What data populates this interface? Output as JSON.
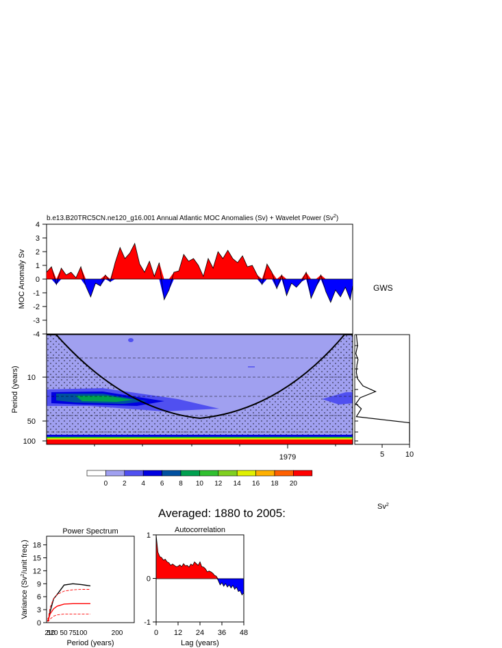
{
  "main_title": "b.e13.B20TRC5CN.ne120_g16.001 Annual Atlantic MOC Anomalies (Sv) + Wavelet Power (Sv",
  "main_title_sup": "2",
  "main_title_end": ")",
  "averaged_title": "Averaged: 1880 to 2005:",
  "gws_label": "GWS",
  "sv2_label": "Sv",
  "sv2_sup": "2",
  "colors": {
    "positive": "#ff0000",
    "negative": "#0000ff",
    "ramp": [
      "#ffffff",
      "#a0a0f0",
      "#5050f0",
      "#0000e0",
      "#0050a0",
      "#00a050",
      "#30c030",
      "#80d020",
      "#e0f000",
      "#ffb000",
      "#ff6000",
      "#ff0000"
    ]
  },
  "chart_data": [
    {
      "type": "area",
      "name": "moc-anomaly",
      "ylabel": "MOC Anomaly Sv",
      "ylim": [
        -4,
        4
      ],
      "yticks": [
        4,
        3,
        2,
        1,
        0,
        -1,
        -2,
        -3,
        -4
      ],
      "x": [
        1880,
        1882,
        1884,
        1886,
        1888,
        1890,
        1892,
        1894,
        1896,
        1898,
        1900,
        1902,
        1904,
        1906,
        1908,
        1910,
        1912,
        1914,
        1916,
        1918,
        1920,
        1922,
        1924,
        1926,
        1928,
        1930,
        1932,
        1934,
        1936,
        1938,
        1940,
        1942,
        1944,
        1946,
        1948,
        1950,
        1952,
        1954,
        1956,
        1958,
        1960,
        1962,
        1964,
        1966,
        1968,
        1970,
        1972,
        1974,
        1976,
        1978,
        1980,
        1982,
        1984,
        1986,
        1988,
        1990,
        1992,
        1994,
        1996,
        1998,
        2000,
        2002,
        2004,
        2005
      ],
      "y": [
        0.5,
        0.9,
        -0.4,
        0.8,
        0.3,
        0.5,
        0.1,
        0.9,
        -0.5,
        -1.3,
        -0.3,
        -0.5,
        0.3,
        -0.2,
        1.2,
        2.3,
        1.5,
        1.9,
        2.6,
        1.1,
        0.5,
        1.3,
        0.2,
        1.2,
        -1.5,
        -0.8,
        0.5,
        0.6,
        1.8,
        1.3,
        1.5,
        1.0,
        0.2,
        1.5,
        0.8,
        2.0,
        1.5,
        2.1,
        1.5,
        1.2,
        1.7,
        0.9,
        1.0,
        0.3,
        -0.4,
        1.1,
        0.5,
        -0.7,
        0.3,
        -1.2,
        -0.3,
        -0.6,
        -0.2,
        0.5,
        -1.4,
        -0.6,
        0.3,
        -0.9,
        -1.7,
        -0.8,
        -1.3,
        -0.6,
        -1.5,
        -0.5
      ],
      "xlim": [
        1880,
        2005
      ]
    },
    {
      "type": "heatmap",
      "name": "wavelet-power",
      "ylabel": "Period (years)",
      "ytick_labels": [
        "10",
        "50",
        "100"
      ],
      "xtick_labels": [
        "1979"
      ],
      "colorbar_levels": [
        0,
        2,
        4,
        6,
        8,
        10,
        12,
        14,
        16,
        18,
        20
      ],
      "colorbar_labels": [
        "0",
        "2",
        "4",
        "6",
        "8",
        "10",
        "12",
        "14",
        "16",
        "18",
        "20"
      ]
    },
    {
      "type": "line",
      "name": "global-wavelet-spectrum",
      "xtick_labels": [
        "5",
        "10"
      ],
      "xlim": [
        0,
        10
      ],
      "period": [
        2,
        3,
        4,
        5,
        6,
        8,
        10,
        13,
        16,
        20,
        25,
        30,
        40,
        50,
        70,
        100
      ],
      "power": [
        0.3,
        0.5,
        0.2,
        0.6,
        0.4,
        0.3,
        0.5,
        1.5,
        3.8,
        1.0,
        0.2,
        1.2,
        0.3,
        10.0,
        10.0,
        10.0
      ]
    },
    {
      "type": "line",
      "name": "power-spectrum",
      "title": "Power Spectrum",
      "xlabel": "Period (years)",
      "ylabel": "Variance (Sv",
      "ylabel_sup": "2",
      "ylabel_end": "/unit freq.)",
      "ylim": [
        0,
        20
      ],
      "yticks": [
        0,
        3,
        6,
        9,
        12,
        15,
        18
      ],
      "xlim": [
        0,
        250
      ],
      "xtick_labels": [
        "2",
        "5",
        "10",
        "20",
        "50",
        "75",
        "100",
        "200"
      ],
      "series": [
        {
          "x": [
            2,
            5,
            10,
            20,
            30,
            50,
            75,
            100,
            125
          ],
          "y": [
            0.5,
            0.5,
            2.5,
            5.5,
            6.5,
            8.7,
            9.0,
            8.8,
            8.5
          ]
        },
        {
          "x": [
            2,
            5,
            10,
            20,
            30,
            50,
            75,
            100,
            125
          ],
          "y": [
            0.5,
            0.6,
            2.0,
            3.2,
            3.8,
            4.3,
            4.4,
            4.4,
            4.4
          ]
        },
        {
          "x": [
            2,
            5,
            10,
            20,
            30,
            50,
            75,
            100,
            125
          ],
          "y": [
            0.8,
            1.0,
            3.5,
            5.5,
            6.5,
            7.3,
            7.6,
            7.7,
            7.7
          ]
        },
        {
          "x": [
            2,
            5,
            10,
            20,
            30,
            50,
            75,
            100,
            125
          ],
          "y": [
            0.3,
            0.3,
            0.8,
            1.5,
            1.8,
            2.0,
            2.0,
            2.0,
            2.0
          ]
        }
      ]
    },
    {
      "type": "area",
      "name": "autocorrelation",
      "title": "Autocorrelation",
      "xlabel": "Lag (years)",
      "xlim": [
        0,
        48
      ],
      "ylim": [
        -1,
        1
      ],
      "xticks": [
        0,
        12,
        24,
        36,
        48
      ],
      "yticks": [
        1,
        0,
        -1
      ],
      "x": [
        0,
        1,
        2,
        3,
        4,
        5,
        6,
        7,
        8,
        9,
        10,
        11,
        12,
        13,
        14,
        15,
        16,
        17,
        18,
        19,
        20,
        21,
        22,
        23,
        24,
        25,
        26,
        27,
        28,
        29,
        30,
        31,
        32,
        33,
        34,
        35,
        36,
        37,
        38,
        39,
        40,
        41,
        42,
        43,
        44,
        45,
        46,
        47,
        48
      ],
      "y": [
        1.0,
        0.6,
        0.5,
        0.48,
        0.42,
        0.44,
        0.38,
        0.36,
        0.3,
        0.33,
        0.3,
        0.27,
        0.28,
        0.31,
        0.27,
        0.34,
        0.29,
        0.3,
        0.26,
        0.33,
        0.3,
        0.38,
        0.34,
        0.3,
        0.38,
        0.27,
        0.26,
        0.22,
        0.15,
        0.17,
        0.15,
        0.12,
        0.07,
        0.05,
        -0.05,
        -0.15,
        -0.1,
        -0.18,
        -0.12,
        -0.2,
        -0.15,
        -0.22,
        -0.16,
        -0.25,
        -0.2,
        -0.3,
        -0.28,
        -0.38,
        -0.33
      ]
    }
  ]
}
